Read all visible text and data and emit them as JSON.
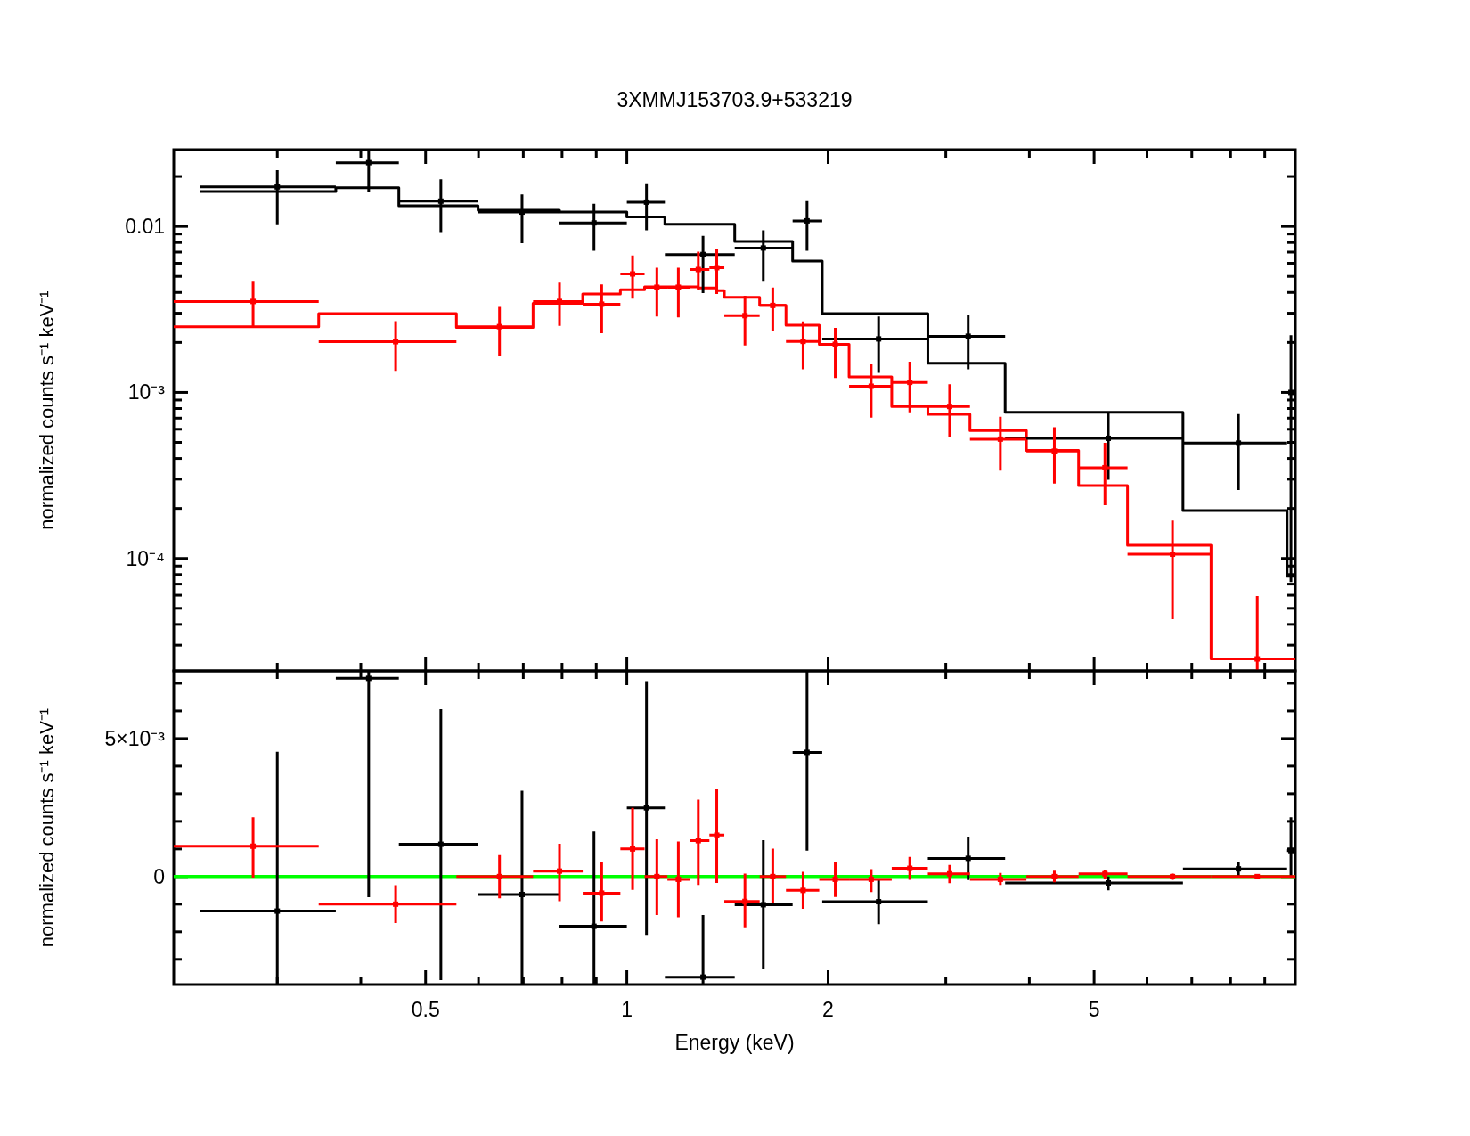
{
  "chart_data": [
    {
      "type": "scatter",
      "title": "3XMMJ153703.9+533219",
      "ylabel": "normalized counts s⁻¹ keV⁻¹",
      "log": "xy",
      "xlim": [
        0.21,
        10
      ],
      "ylim": [
        2.1e-05,
        0.029
      ],
      "tick_labels": "y",
      "xticks": [
        {
          "value": 0.3,
          "label": null
        },
        {
          "value": 0.4,
          "label": null
        },
        0.5,
        {
          "value": 0.6,
          "label": null
        },
        {
          "value": 0.7,
          "label": null
        },
        {
          "value": 0.8,
          "label": null
        },
        {
          "value": 0.9,
          "label": null
        },
        1,
        2,
        {
          "value": 3,
          "label": null
        },
        {
          "value": 4,
          "label": null
        },
        5,
        {
          "value": 6,
          "label": null
        },
        {
          "value": 7,
          "label": null
        },
        {
          "value": 8,
          "label": null
        },
        {
          "value": 9,
          "label": null
        }
      ],
      "yticks": [
        {
          "value": 3e-05,
          "label": null
        },
        {
          "value": 4e-05,
          "label": null
        },
        {
          "value": 5e-05,
          "label": null
        },
        {
          "value": 6e-05,
          "label": null
        },
        {
          "value": 7e-05,
          "label": null
        },
        {
          "value": 8e-05,
          "label": null
        },
        {
          "value": 9e-05,
          "label": null
        },
        {
          "value": 0.0001,
          "label": "10⁻⁴"
        },
        {
          "value": 0.0002,
          "label": null
        },
        {
          "value": 0.0003,
          "label": null
        },
        {
          "value": 0.0004,
          "label": null
        },
        {
          "value": 0.0005,
          "label": null
        },
        {
          "value": 0.0006,
          "label": null
        },
        {
          "value": 0.0007,
          "label": null
        },
        {
          "value": 0.0008,
          "label": null
        },
        {
          "value": 0.0009,
          "label": null
        },
        {
          "value": 0.001,
          "label": "10⁻³"
        },
        {
          "value": 0.002,
          "label": null
        },
        {
          "value": 0.003,
          "label": null
        },
        {
          "value": 0.004,
          "label": null
        },
        {
          "value": 0.005,
          "label": null
        },
        {
          "value": 0.006,
          "label": null
        },
        {
          "value": 0.007,
          "label": null
        },
        {
          "value": 0.008,
          "label": null
        },
        {
          "value": 0.009,
          "label": null
        },
        0.01,
        {
          "value": 0.02,
          "label": null
        }
      ],
      "series": [
        {
          "type": "step",
          "color": "#000000",
          "x": [
            0.23,
            0.367,
            0.456,
            0.599,
            0.793,
            1.0,
            1.14,
            1.45,
            1.77,
            1.96,
            2.82,
            3.68,
            6.79,
            9.72,
            9.99
          ],
          "values": [
            0.0162,
            0.0171,
            0.0133,
            0.0125,
            0.0122,
            0.0114,
            0.0103,
            0.00812,
            0.00618,
            0.00298,
            0.0015,
            0.00076,
            0.000194,
            7.8e-05,
            7.8e-05
          ]
        },
        {
          "type": "step",
          "color": "#ff0000",
          "x": [
            0.21,
            0.346,
            0.556,
            0.724,
            0.859,
            0.978,
            1.063,
            1.279,
            1.363,
            1.399,
            1.58,
            1.73,
            1.94,
            2.15,
            2.49,
            2.82,
            3.26,
            3.96,
            4.74,
            5.61,
            7.48,
            10
          ],
          "values": [
            0.00249,
            0.00298,
            0.00246,
            0.00344,
            0.00392,
            0.00415,
            0.00432,
            0.00426,
            0.0041,
            0.00374,
            0.00334,
            0.00254,
            0.00195,
            0.00124,
            0.000823,
            0.000738,
            0.000589,
            0.000448,
            0.000275,
            0.00012,
            2.48e-05,
            2.48e-05
          ]
        },
        {
          "type": "scatter",
          "color": "#000000",
          "x": [
            0.3,
            0.411,
            0.527,
            0.697,
            0.893,
            1.07,
            1.3,
            1.6,
            1.86,
            2.38,
            3.24,
            5.25,
            8.22,
            9.85
          ],
          "values": [
            0.0173,
            0.0242,
            0.0142,
            0.0122,
            0.0105,
            0.014,
            0.00677,
            0.00741,
            0.0108,
            0.0021,
            0.00218,
            0.000529,
            0.000495,
            0.001
          ],
          "errors": [
            [
              0.0103,
              0.0218
            ],
            [
              0.0162,
              0.029
            ],
            [
              0.00925,
              0.0192
            ],
            [
              0.00791,
              0.0156
            ],
            [
              0.00713,
              0.0137
            ],
            [
              0.00949,
              0.0182
            ],
            [
              0.00397,
              0.00878
            ],
            [
              0.0047,
              0.00949
            ],
            [
              0.00713,
              0.0142
            ],
            [
              0.00131,
              0.00287
            ],
            [
              0.00138,
              0.00295
            ],
            [
              0.000298,
              0.00076
            ],
            [
              0.000258,
              0.00074
            ],
            [
              7.2e-05,
              0.00221
            ]
          ],
          "xerrors": [
            [
              0.23,
              0.367
            ],
            [
              0.367,
              0.456
            ],
            [
              0.456,
              0.599
            ],
            [
              0.599,
              0.793
            ],
            [
              0.793,
              1.0
            ],
            [
              1.0,
              1.14
            ],
            [
              1.14,
              1.45
            ],
            [
              1.45,
              1.77
            ],
            [
              1.77,
              1.96
            ],
            [
              1.96,
              2.82
            ],
            [
              2.82,
              3.68
            ],
            [
              3.68,
              6.79
            ],
            [
              6.79,
              9.72
            ],
            [
              9.72,
              9.99
            ]
          ]
        },
        {
          "type": "scatter",
          "color": "#ff0000",
          "x": [
            0.276,
            0.451,
            0.645,
            0.793,
            0.917,
            1.02,
            1.109,
            1.194,
            1.279,
            1.363,
            1.502,
            1.653,
            1.835,
            2.05,
            2.32,
            2.65,
            3.04,
            3.62,
            4.36,
            5.19,
            6.55,
            8.77
          ],
          "values": [
            0.00353,
            0.00202,
            0.00249,
            0.00353,
            0.0034,
            0.00517,
            0.0043,
            0.0043,
            0.0055,
            0.00564,
            0.0029,
            0.00334,
            0.00203,
            0.00195,
            0.00109,
            0.00115,
            0.000823,
            0.000523,
            0.000443,
            0.000352,
            0.000106,
            2.48e-05
          ],
          "errors": [
            [
              0.00245,
              0.0047
            ],
            [
              0.00135,
              0.00269
            ],
            [
              0.00166,
              0.00327
            ],
            [
              0.00252,
              0.00458
            ],
            [
              0.00227,
              0.00447
            ],
            [
              0.00367,
              0.00668
            ],
            [
              0.00287,
              0.00564
            ],
            [
              0.00283,
              0.00564
            ],
            [
              0.00413,
              0.00704
            ],
            [
              0.00392,
              0.00732
            ],
            [
              0.00192,
              0.00382
            ],
            [
              0.00235,
              0.00428
            ],
            [
              0.00138,
              0.00268
            ],
            [
              0.00122,
              0.00245
            ],
            [
              0.000705,
              0.00148
            ],
            [
              0.000758,
              0.00153
            ],
            [
              0.000537,
              0.00112
            ],
            [
              0.000338,
              0.000713
            ],
            [
              0.000282,
              0.000617
            ],
            [
              0.000209,
              0.000497
            ],
            [
              4.3e-05,
              0.000169
            ],
            [
              2.1e-05,
              5.94e-05
            ]
          ],
          "xerrors": [
            [
              0.21,
              0.346
            ],
            [
              0.346,
              0.556
            ],
            [
              0.556,
              0.724
            ],
            [
              0.724,
              0.859
            ],
            [
              0.859,
              0.978
            ],
            [
              0.978,
              1.063
            ],
            [
              1.063,
              1.15
            ],
            [
              1.15,
              1.242
            ],
            [
              1.242,
              1.329
            ],
            [
              1.329,
              1.399
            ],
            [
              1.399,
              1.58
            ],
            [
              1.58,
              1.73
            ],
            [
              1.73,
              1.94
            ],
            [
              1.94,
              2.15
            ],
            [
              2.15,
              2.49
            ],
            [
              2.49,
              2.82
            ],
            [
              2.82,
              3.26
            ],
            [
              3.26,
              3.96
            ],
            [
              3.96,
              4.74
            ],
            [
              4.74,
              5.61
            ],
            [
              5.61,
              7.48
            ],
            [
              7.48,
              10
            ]
          ]
        }
      ]
    },
    {
      "type": "scatter",
      "xlabel": "Energy (keV)",
      "ylabel": "normalized counts s⁻¹ keV⁻¹",
      "log": "x",
      "xlim": [
        0.21,
        10
      ],
      "ylim": [
        -0.00391,
        0.00745
      ],
      "xticks": [
        {
          "value": 0.3,
          "label": null
        },
        {
          "value": 0.4,
          "label": null
        },
        0.5,
        {
          "value": 0.6,
          "label": null
        },
        {
          "value": 0.7,
          "label": null
        },
        {
          "value": 0.8,
          "label": null
        },
        {
          "value": 0.9,
          "label": null
        },
        1,
        2,
        {
          "value": 3,
          "label": null
        },
        {
          "value": 4,
          "label": null
        },
        5,
        {
          "value": 6,
          "label": null
        },
        {
          "value": 7,
          "label": null
        },
        {
          "value": 8,
          "label": null
        },
        {
          "value": 9,
          "label": null
        }
      ],
      "yticks": [
        {
          "value": -0.003,
          "label": null
        },
        {
          "value": -0.002,
          "label": null
        },
        {
          "value": -0.001,
          "label": null
        },
        0,
        {
          "value": 0.001,
          "label": null
        },
        {
          "value": 0.002,
          "label": null
        },
        {
          "value": 0.003,
          "label": null
        },
        {
          "value": 0.004,
          "label": null
        },
        {
          "value": 0.005,
          "label": "5×10⁻³"
        },
        {
          "value": 0.006,
          "label": null
        },
        {
          "value": 0.007,
          "label": null
        }
      ],
      "ref_lines": [
        {
          "axis": "y",
          "value": 0,
          "color": "#00ff00"
        }
      ],
      "series": [
        {
          "type": "scatter",
          "color": "#000000",
          "x": [
            0.3,
            0.411,
            0.527,
            0.697,
            0.893,
            1.07,
            1.3,
            1.6,
            1.86,
            2.38,
            3.24,
            5.25,
            8.22,
            9.85
          ],
          "values": [
            -0.00125,
            0.00718,
            0.00117,
            -0.00065,
            -0.0018,
            0.00249,
            -0.00364,
            -0.00102,
            0.0045,
            -0.00091,
            0.00066,
            -0.00023,
            0.00028,
            0.00094
          ],
          "errors": [
            [
              -0.00391,
              0.00452
            ],
            [
              -0.00075,
              0.00745
            ],
            [
              -0.00375,
              0.00606
            ],
            [
              -0.00391,
              0.00311
            ],
            [
              -0.00391,
              0.00163
            ],
            [
              -0.00211,
              0.00708
            ],
            [
              -0.00391,
              -0.00139
            ],
            [
              -0.00336,
              0.00132
            ],
            [
              0.00094,
              0.00745
            ],
            [
              -0.00172,
              -0.00013
            ],
            [
              -0.00013,
              0.00145
            ],
            [
              -0.0005,
              0
            ],
            [
              0,
              0.00054
            ],
            [
              0,
              0.00215
            ]
          ],
          "xerrors": [
            [
              0.23,
              0.367
            ],
            [
              0.367,
              0.456
            ],
            [
              0.456,
              0.599
            ],
            [
              0.599,
              0.793
            ],
            [
              0.793,
              1.0
            ],
            [
              1.0,
              1.14
            ],
            [
              1.14,
              1.45
            ],
            [
              1.45,
              1.77
            ],
            [
              1.77,
              1.96
            ],
            [
              1.96,
              2.82
            ],
            [
              2.82,
              3.68
            ],
            [
              3.68,
              6.79
            ],
            [
              6.79,
              9.72
            ],
            [
              9.72,
              9.99
            ]
          ]
        },
        {
          "type": "scatter",
          "color": "#ff0000",
          "x": [
            0.276,
            0.451,
            0.645,
            0.793,
            0.917,
            1.02,
            1.109,
            1.194,
            1.279,
            1.363,
            1.502,
            1.653,
            1.835,
            2.05,
            2.32,
            2.65,
            3.04,
            3.62,
            4.36,
            5.19,
            6.55,
            8.77
          ],
          "values": [
            0.0011,
            -0.001,
            0,
            0.0002,
            -0.0006,
            0.001,
            0,
            -0.0001,
            0.0013,
            0.0015,
            -0.0009,
            0,
            -0.0005,
            -0.0001,
            -0.0001,
            0.0003,
            0.0001,
            -0.0001,
            0,
            0.0001,
            0,
            0
          ],
          "errors": [
            [
              -4e-05,
              0.00215
            ],
            [
              -0.00168,
              -0.00031
            ],
            [
              -0.00079,
              0.00078
            ],
            [
              -0.00089,
              0.00119
            ],
            [
              -0.00163,
              0.00053
            ],
            [
              -0.00048,
              0.00249
            ],
            [
              -0.00139,
              0.00135
            ],
            [
              -0.00147,
              0.00127
            ],
            [
              -0.0003,
              0.00279
            ],
            [
              -0.00023,
              0.00317
            ],
            [
              -0.00184,
              0.00011
            ],
            [
              -0.00094,
              0.00101
            ],
            [
              -0.00117,
              0.00017
            ],
            [
              -0.00074,
              0.00054
            ],
            [
              -0.00056,
              0.00027
            ],
            [
              -0.00012,
              0.00071
            ],
            [
              -0.00024,
              0.00042
            ],
            [
              -0.0003,
              0.00013
            ],
            [
              -0.00021,
              0.00021
            ],
            [
              -8e-05,
              0.00024
            ],
            [
              -0.00012,
              0.00011
            ],
            [
              -8e-05,
              8e-05
            ]
          ],
          "xerrors": [
            [
              0.21,
              0.346
            ],
            [
              0.346,
              0.556
            ],
            [
              0.556,
              0.724
            ],
            [
              0.724,
              0.859
            ],
            [
              0.859,
              0.978
            ],
            [
              0.978,
              1.063
            ],
            [
              1.063,
              1.15
            ],
            [
              1.15,
              1.242
            ],
            [
              1.242,
              1.329
            ],
            [
              1.329,
              1.399
            ],
            [
              1.399,
              1.58
            ],
            [
              1.58,
              1.73
            ],
            [
              1.73,
              1.94
            ],
            [
              1.94,
              2.15
            ],
            [
              2.15,
              2.49
            ],
            [
              2.49,
              2.82
            ],
            [
              2.82,
              3.26
            ],
            [
              3.26,
              3.96
            ],
            [
              3.96,
              4.74
            ],
            [
              4.74,
              5.61
            ],
            [
              5.61,
              7.48
            ],
            [
              7.48,
              10
            ]
          ]
        }
      ]
    }
  ]
}
